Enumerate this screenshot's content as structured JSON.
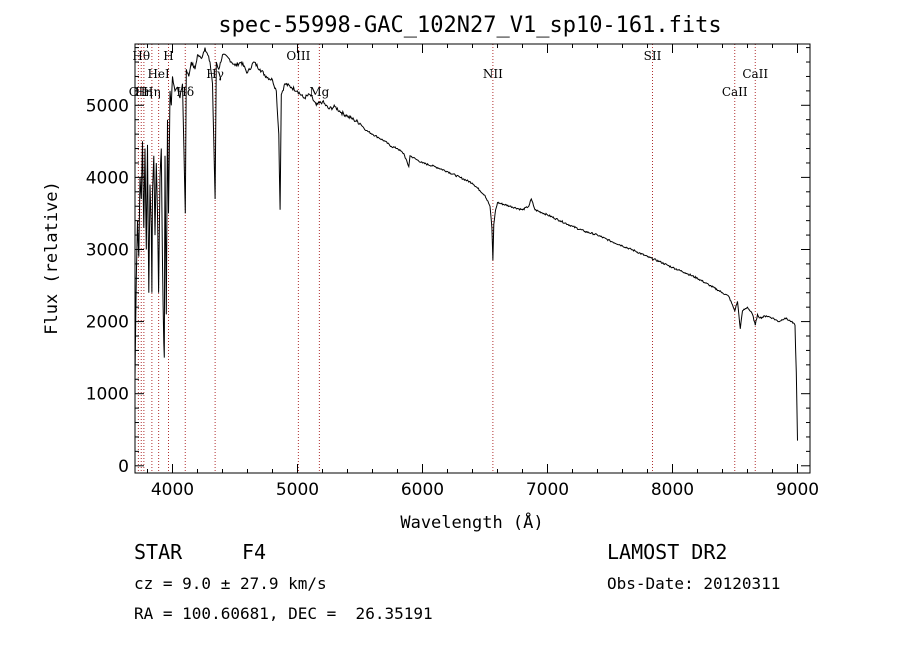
{
  "chart_data": {
    "type": "line",
    "title": "spec-55998-GAC_102N27_V1_sp10-161.fits",
    "xlabel": "Wavelength (Å)",
    "ylabel": "Flux (relative)",
    "xlim": [
      3700,
      9100
    ],
    "ylim": [
      -100,
      5850
    ],
    "x_ticks": [
      4000,
      5000,
      6000,
      7000,
      8000,
      9000
    ],
    "y_ticks": [
      0,
      1000,
      2000,
      3000,
      4000,
      5000
    ],
    "grid": false,
    "series": [
      {
        "x": [
          3700,
          3710,
          3720,
          3730,
          3740,
          3750,
          3760,
          3770,
          3780,
          3790,
          3800,
          3810,
          3820,
          3830,
          3835,
          3840,
          3850,
          3860,
          3870,
          3880,
          3889,
          3900,
          3910,
          3920,
          3930,
          3934,
          3940,
          3950,
          3960,
          3968,
          3980,
          3990,
          4000,
          4020,
          4040,
          4060,
          4080,
          4102,
          4110,
          4130,
          4150,
          4180,
          4200,
          4230,
          4260,
          4300,
          4320,
          4330,
          4341,
          4350,
          4370,
          4400,
          4450,
          4500,
          4550,
          4600,
          4650,
          4700,
          4750,
          4800,
          4830,
          4850,
          4861,
          4870,
          4880,
          4900,
          4950,
          5000,
          5050,
          5100,
          5150,
          5200,
          5250,
          5300,
          5350,
          5400,
          5450,
          5500,
          5550,
          5600,
          5650,
          5700,
          5750,
          5800,
          5850,
          5890,
          5900,
          5950,
          6000,
          6100,
          6200,
          6300,
          6400,
          6500,
          6540,
          6555,
          6563,
          6570,
          6585,
          6600,
          6700,
          6800,
          6850,
          6870,
          6900,
          7000,
          7100,
          7200,
          7300,
          7400,
          7500,
          7600,
          7700,
          7800,
          7900,
          8000,
          8100,
          8200,
          8300,
          8400,
          8450,
          8498,
          8520,
          8542,
          8560,
          8600,
          8640,
          8662,
          8680,
          8700,
          8750,
          8800,
          8850,
          8900,
          8950,
          8980,
          8990,
          9000
        ],
        "values": [
          1200,
          2600,
          3400,
          2900,
          4000,
          3700,
          4500,
          3300,
          4400,
          3000,
          4450,
          2400,
          3900,
          3300,
          2400,
          3800,
          4300,
          3200,
          4200,
          3500,
          2400,
          4000,
          4400,
          2800,
          1700,
          1500,
          4300,
          2100,
          4800,
          3500,
          5200,
          5000,
          5400,
          5200,
          5250,
          5100,
          5300,
          3500,
          5500,
          5400,
          5600,
          5500,
          5700,
          5650,
          5800,
          5600,
          5300,
          4500,
          3700,
          5600,
          5500,
          5700,
          5650,
          5550,
          5600,
          5450,
          5600,
          5500,
          5400,
          5350,
          5200,
          4600,
          3550,
          5150,
          5200,
          5300,
          5250,
          5200,
          5100,
          5150,
          5000,
          5050,
          4950,
          4980,
          4900,
          4850,
          4800,
          4750,
          4650,
          4600,
          4550,
          4500,
          4430,
          4400,
          4330,
          4150,
          4300,
          4250,
          4200,
          4150,
          4080,
          4000,
          3920,
          3750,
          3600,
          3300,
          2850,
          3350,
          3550,
          3650,
          3600,
          3550,
          3600,
          3700,
          3550,
          3480,
          3400,
          3320,
          3250,
          3200,
          3120,
          3050,
          2980,
          2900,
          2830,
          2750,
          2680,
          2600,
          2500,
          2400,
          2350,
          2150,
          2280,
          1900,
          2150,
          2200,
          2100,
          1950,
          2100,
          2050,
          2080,
          2050,
          2000,
          2050,
          2000,
          1950,
          1300,
          350
        ]
      }
    ],
    "lines": [
      {
        "x": 3727,
        "label": "OII",
        "row": 2
      },
      {
        "x": 3750,
        "label": "Hθ",
        "row": 0
      },
      {
        "x": 3771,
        "label": "Hη",
        "row": 2
      },
      {
        "x": 3835,
        "label": "Hη",
        "row": 2
      },
      {
        "x": 3889,
        "label": "HeI",
        "row": 1
      },
      {
        "x": 3968,
        "label": "H",
        "row": 0
      },
      {
        "x": 4102,
        "label": "Hδ",
        "row": 2
      },
      {
        "x": 4341,
        "label": "Hγ",
        "row": 1
      },
      {
        "x": 5007,
        "label": "OIII",
        "row": 0
      },
      {
        "x": 5175,
        "label": "Mg",
        "row": 2
      },
      {
        "x": 6563,
        "label": "NII",
        "row": 1
      },
      {
        "x": 7840,
        "label": "SII",
        "row": 0
      },
      {
        "x": 8498,
        "label": "CaII",
        "row": 2
      },
      {
        "x": 8662,
        "label": "CaII",
        "row": 1
      }
    ]
  },
  "info": {
    "class": "STAR",
    "subclass": "F4",
    "survey": "LAMOST DR2",
    "cz": "cz = 9.0 ± 27.9 km/s",
    "obs_date": "Obs-Date: 20120311",
    "coords": "RA = 100.60681, DEC =  26.35191"
  }
}
